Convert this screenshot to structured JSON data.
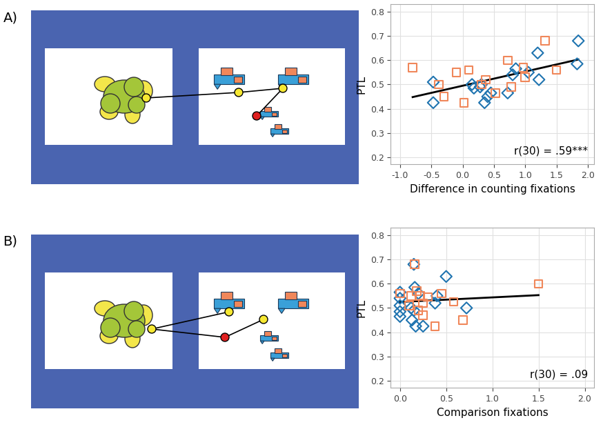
{
  "chart_data": [
    {
      "type": "scatter",
      "title": "A)",
      "x_label": "Difference in counting fixations",
      "y_label": "PTL",
      "annotations": [
        "r(30) = .59***"
      ],
      "xlim": [
        -1.15,
        2.1
      ],
      "ylim": [
        0.17,
        0.83
      ],
      "xticks": [
        {
          "value": -1.0,
          "label": "-1.0"
        },
        {
          "value": -0.5,
          "label": "-0.5"
        },
        {
          "value": 0.0,
          "label": "0.0"
        },
        {
          "value": 0.5,
          "label": "0.5"
        },
        {
          "value": 1.0,
          "label": "1.0"
        },
        {
          "value": 1.5,
          "label": "1.5"
        },
        {
          "value": 2.0,
          "label": "2.0"
        }
      ],
      "yticks": [
        0.2,
        0.3,
        0.4,
        0.5,
        0.6,
        0.7,
        0.8
      ],
      "grid": true,
      "series": [
        {
          "color": "#1f74b0",
          "marker": "diamond",
          "x": [
            -0.47,
            -0.47,
            0.15,
            0.18,
            0.28,
            0.3,
            0.35,
            0.4,
            0.45,
            0.72,
            0.8,
            0.85,
            1.05,
            1.2,
            1.22,
            1.85,
            1.83
          ],
          "values": [
            0.51,
            0.425,
            0.5,
            0.485,
            0.49,
            0.5,
            0.425,
            0.45,
            0.465,
            0.465,
            0.54,
            0.565,
            0.55,
            0.63,
            0.52,
            0.68,
            0.585
          ]
        },
        {
          "color": "#f0875a",
          "marker": "square",
          "x": [
            -0.8,
            -0.38,
            -0.3,
            -0.1,
            0.02,
            0.1,
            0.37,
            0.52,
            0.72,
            0.78,
            0.97,
            1.0,
            1.32,
            1.5,
            0.3
          ],
          "values": [
            0.57,
            0.5,
            0.45,
            0.55,
            0.425,
            0.56,
            0.52,
            0.465,
            0.6,
            0.49,
            0.57,
            0.53,
            0.68,
            0.56,
            0.5
          ]
        },
        {
          "type": "line",
          "color": "#000000",
          "line_style": "solid",
          "x": [
            -0.8,
            1.85
          ],
          "values": [
            0.448,
            0.603
          ]
        }
      ]
    },
    {
      "type": "scatter",
      "title": "B)",
      "x_label": "Comparison fixations",
      "y_label": "PTL",
      "annotations": [
        "r(30) = .09"
      ],
      "xlim": [
        -0.1,
        2.1
      ],
      "ylim": [
        0.17,
        0.83
      ],
      "xticks": [
        {
          "value": 0.0,
          "label": "0.0"
        },
        {
          "value": 0.5,
          "label": "0.5"
        },
        {
          "value": 1.0,
          "label": "1.0"
        },
        {
          "value": 1.5,
          "label": "1.5"
        },
        {
          "value": 2.0,
          "label": "2.0"
        }
      ],
      "yticks": [
        0.2,
        0.3,
        0.4,
        0.5,
        0.6,
        0.7,
        0.8
      ],
      "grid": true,
      "series": [
        {
          "color": "#1f74b0",
          "marker": "diamond",
          "x": [
            0.0,
            0.0,
            0.0,
            0.0,
            0.0,
            0.12,
            0.13,
            0.15,
            0.16,
            0.17,
            0.2,
            0.25,
            0.38,
            0.4,
            0.5,
            0.72,
            0.15
          ],
          "values": [
            0.565,
            0.54,
            0.51,
            0.485,
            0.465,
            0.5,
            0.45,
            0.68,
            0.585,
            0.425,
            0.56,
            0.425,
            0.52,
            0.55,
            0.63,
            0.5,
            0.49
          ]
        },
        {
          "color": "#f0875a",
          "marker": "square",
          "x": [
            0.0,
            0.12,
            0.16,
            0.18,
            0.22,
            0.25,
            0.25,
            0.38,
            0.45,
            0.58,
            0.68,
            1.5,
            0.1,
            0.3,
            0.2
          ],
          "values": [
            0.56,
            0.55,
            0.68,
            0.57,
            0.55,
            0.52,
            0.47,
            0.425,
            0.56,
            0.525,
            0.45,
            0.6,
            0.51,
            0.545,
            0.49
          ]
        },
        {
          "type": "line",
          "color": "#000000",
          "line_style": "solid",
          "x": [
            0.0,
            1.5
          ],
          "values": [
            0.525,
            0.553
          ]
        }
      ]
    }
  ]
}
